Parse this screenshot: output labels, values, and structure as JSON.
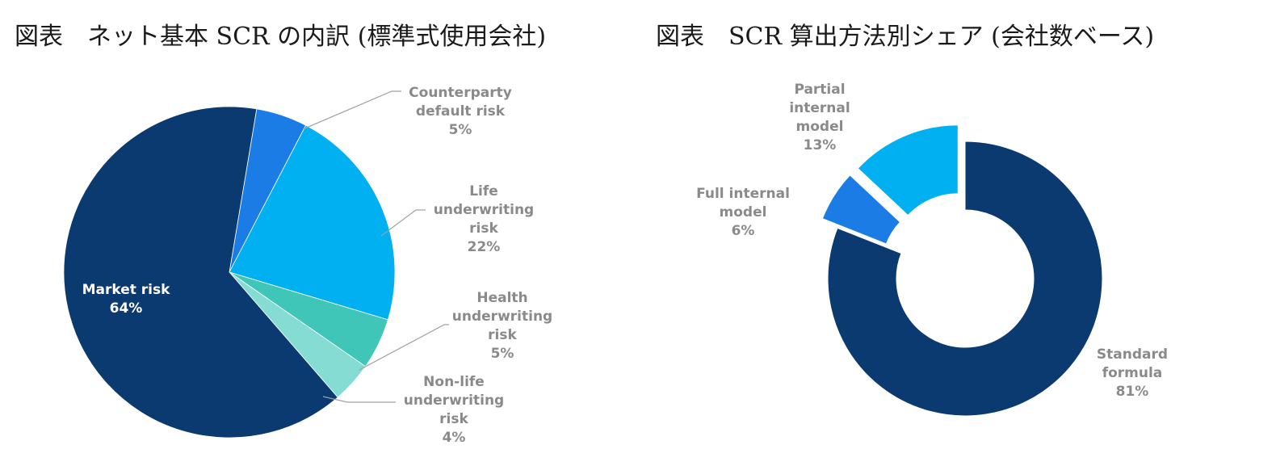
{
  "chart_data": [
    {
      "type": "pie",
      "title": "図表　ネット基本 SCR の内訳 (標準式使用会社)",
      "slices": [
        {
          "label": [
            "Market risk"
          ],
          "value": 64,
          "value_label": "64%",
          "color": "#0b3a70",
          "label_color": "#ffffff"
        },
        {
          "label": [
            "Counterparty",
            "default risk"
          ],
          "value": 5,
          "value_label": "5%",
          "color": "#1c7ce6",
          "label_color": "#8a8a8a"
        },
        {
          "label": [
            "Life",
            "underwriting",
            "risk"
          ],
          "value": 22,
          "value_label": "22%",
          "color": "#00b0f0",
          "label_color": "#8a8a8a"
        },
        {
          "label": [
            "Health",
            "underwriting",
            "risk"
          ],
          "value": 5,
          "value_label": "5%",
          "color": "#3fc6b8",
          "label_color": "#8a8a8a"
        },
        {
          "label": [
            "Non-life",
            "underwriting",
            "risk"
          ],
          "value": 4,
          "value_label": "4%",
          "color": "#84dcd3",
          "label_color": "#8a8a8a"
        }
      ]
    },
    {
      "type": "pie",
      "donut": true,
      "title": "図表　SCR 算出方法別シェア (会社数ベース)",
      "slices": [
        {
          "label": [
            "Standard",
            "formula"
          ],
          "value": 81,
          "value_label": "81%",
          "color": "#0b3a70",
          "label_color": "#8a8a8a"
        },
        {
          "label": [
            "Full internal",
            "model"
          ],
          "value": 6,
          "value_label": "6%",
          "color": "#1c7ce6",
          "label_color": "#8a8a8a",
          "exploded": true
        },
        {
          "label": [
            "Partial",
            "internal",
            "model"
          ],
          "value": 13,
          "value_label": "13%",
          "color": "#00b0f0",
          "label_color": "#8a8a8a",
          "exploded": true
        }
      ]
    }
  ]
}
